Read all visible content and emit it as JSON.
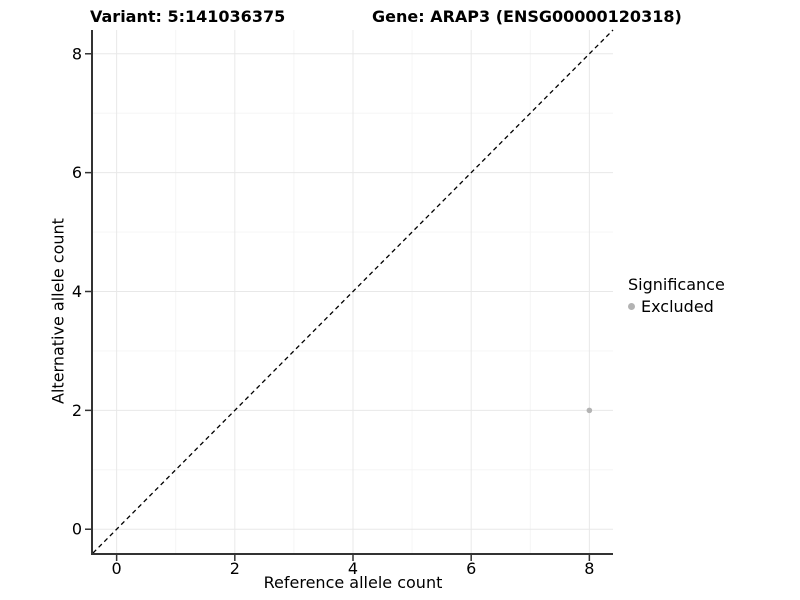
{
  "chart_data": {
    "type": "scatter",
    "title_left": "Variant: 5:141036375",
    "title_right": "Gene: ARAP3 (ENSG00000120318)",
    "xlabel": "Reference allele count",
    "ylabel": "Alternative allele count",
    "xlim": [
      -0.4,
      8.4
    ],
    "ylim": [
      -0.4,
      8.4
    ],
    "x_ticks": [
      0,
      2,
      4,
      6,
      8
    ],
    "y_ticks": [
      0,
      2,
      4,
      6,
      8
    ],
    "x_minor_ticks": [
      1,
      3,
      5,
      7
    ],
    "y_minor_ticks": [
      1,
      3,
      5,
      7
    ],
    "grid": "major+minor",
    "reference_line": {
      "type": "identity",
      "slope": 1,
      "intercept": 0,
      "style": "dashed",
      "color": "#000000"
    },
    "series": [
      {
        "name": "Excluded",
        "color": "#b3b3b3",
        "points": [
          [
            8,
            2
          ]
        ]
      }
    ],
    "legend": {
      "title": "Significance",
      "position": "right",
      "entries": [
        {
          "label": "Excluded",
          "color": "#b3b3b3"
        }
      ]
    },
    "style": {
      "background": "#ffffff",
      "grid_major": "#e8e8e8",
      "grid_minor": "#f4f4f4",
      "axis_line": "#333333",
      "tick": "#333333",
      "text": "#000000"
    }
  }
}
